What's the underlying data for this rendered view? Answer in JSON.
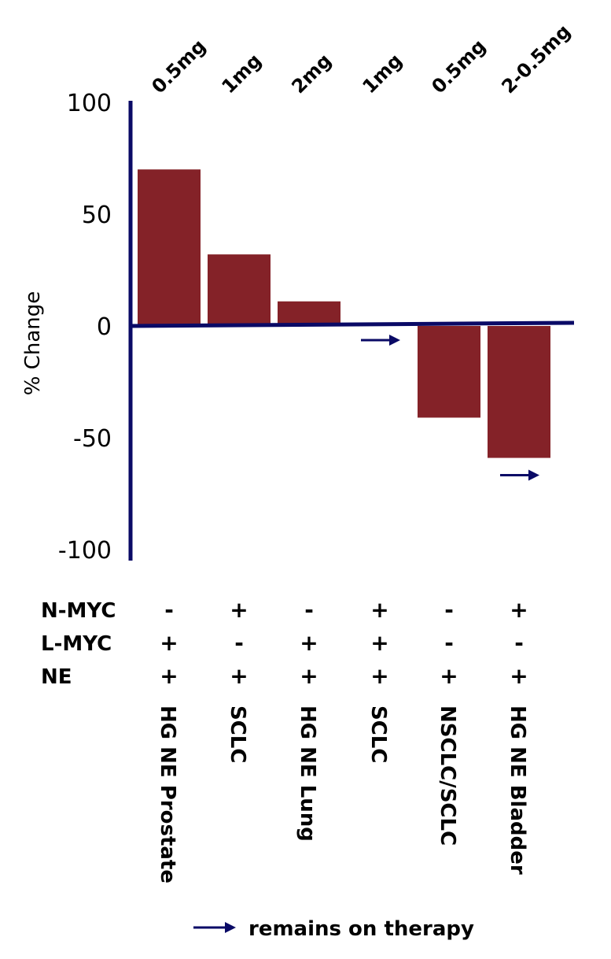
{
  "chart_data": {
    "type": "bar",
    "ylabel": "% Change",
    "ylim": [
      -100,
      100
    ],
    "yticks": [
      100,
      50,
      0,
      -50,
      -100
    ],
    "dose_labels": [
      "0.5mg",
      "1mg",
      "2mg",
      "1mg",
      "0.5mg",
      "2-0.5mg"
    ],
    "categories": [
      "HG NE Prostate",
      "SCLC",
      "HG NE Lung",
      "SCLC",
      "NSCLC/SCLC",
      "HG NE Bladder"
    ],
    "values": [
      70,
      32,
      11,
      0,
      -41,
      -59
    ],
    "remains_on_therapy": [
      false,
      false,
      false,
      true,
      false,
      true
    ],
    "markers": {
      "rows": [
        {
          "label": "N-MYC",
          "values": [
            "-",
            "+",
            "-",
            "+",
            "-",
            "+"
          ]
        },
        {
          "label": "L-MYC",
          "values": [
            "+",
            "-",
            "+",
            "+",
            "-",
            "-"
          ]
        },
        {
          "label": "NE",
          "values": [
            "+",
            "+",
            "+",
            "+",
            "+",
            "+"
          ]
        }
      ]
    },
    "legend": {
      "label": "remains on therapy"
    },
    "colors": {
      "bar": "#842228",
      "axis": "#0a0a66"
    }
  }
}
